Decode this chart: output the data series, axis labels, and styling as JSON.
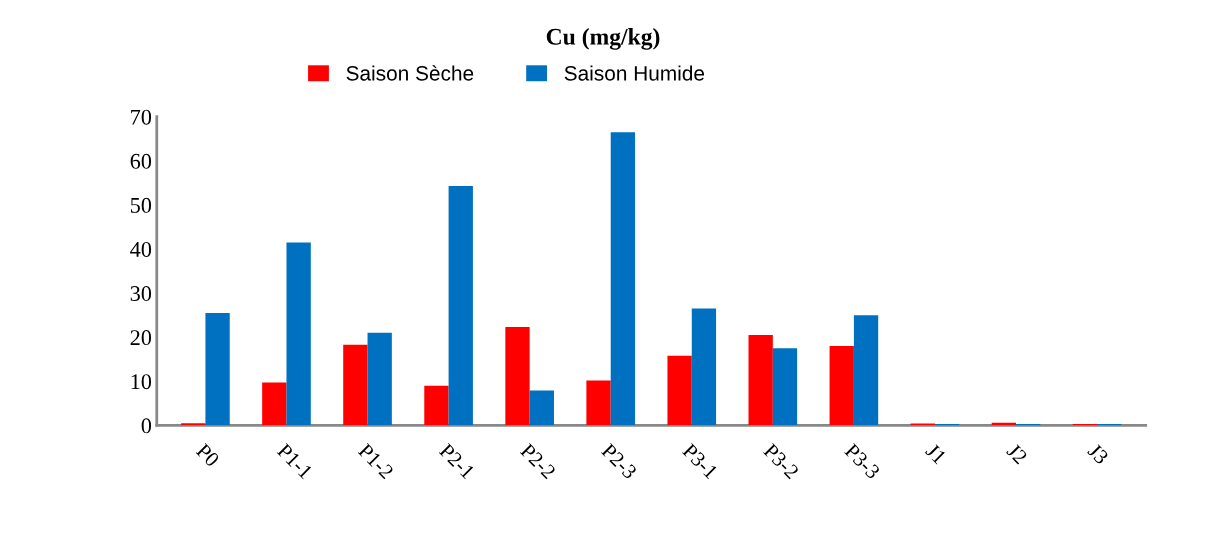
{
  "chart_data": {
    "type": "bar",
    "title": "Cu (mg/kg)",
    "categories": [
      "P0",
      "P1-1",
      "P1-2",
      "P2-1",
      "P2-2",
      "P2-3",
      "P3-1",
      "P3-2",
      "P3-3",
      "J1",
      "J2",
      "J3"
    ],
    "series": [
      {
        "name": "Saison Sèche",
        "color": "#ff0000",
        "values": [
          0.5,
          9.7,
          18.3,
          9,
          22.3,
          10.2,
          15.8,
          20.5,
          18,
          0.4,
          0.6,
          0.3
        ]
      },
      {
        "name": "Saison Humide",
        "color": "#0070c0",
        "values": [
          25.5,
          41.5,
          21,
          54.3,
          7.9,
          66.5,
          26.5,
          17.5,
          25,
          0.3,
          0.3,
          0.3
        ]
      }
    ],
    "ylim": [
      0,
      70
    ],
    "yticks": [
      0,
      10,
      20,
      30,
      40,
      50,
      60,
      70
    ],
    "grid": false,
    "legend": "top"
  }
}
